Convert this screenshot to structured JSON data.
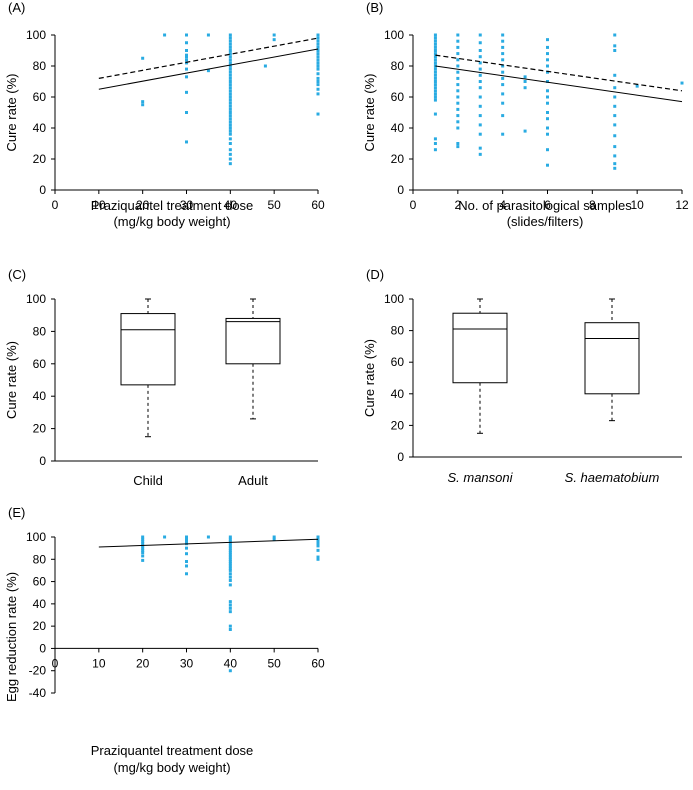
{
  "chart_data": [
    {
      "id": "A",
      "panel_label": "(A)",
      "type": "scatter",
      "xlabel": [
        "Praziquantel treatment dose",
        "(mg/kg body weight)"
      ],
      "ylabel": "Cure rate (%)",
      "xlim": [
        0,
        60
      ],
      "ylim": [
        0,
        100
      ],
      "xticks": [
        0,
        10,
        20,
        30,
        40,
        50,
        60
      ],
      "yticks": [
        0,
        20,
        40,
        60,
        80,
        100
      ],
      "points": [
        [
          20,
          57
        ],
        [
          20,
          55
        ],
        [
          20,
          85
        ],
        [
          25,
          100
        ],
        [
          30,
          31
        ],
        [
          30,
          50
        ],
        [
          30,
          63
        ],
        [
          30,
          73
        ],
        [
          30,
          78
        ],
        [
          30,
          82
        ],
        [
          30,
          84
        ],
        [
          30,
          86
        ],
        [
          30,
          87
        ],
        [
          30,
          90
        ],
        [
          30,
          95
        ],
        [
          30,
          100
        ],
        [
          35,
          77
        ],
        [
          35,
          100
        ],
        [
          40,
          17
        ],
        [
          40,
          20
        ],
        [
          40,
          23
        ],
        [
          40,
          26
        ],
        [
          40,
          30
        ],
        [
          40,
          33
        ],
        [
          40,
          36
        ],
        [
          40,
          38
        ],
        [
          40,
          40
        ],
        [
          40,
          42
        ],
        [
          40,
          44
        ],
        [
          40,
          46
        ],
        [
          40,
          48
        ],
        [
          40,
          50
        ],
        [
          40,
          52
        ],
        [
          40,
          54
        ],
        [
          40,
          56
        ],
        [
          40,
          58
        ],
        [
          40,
          60
        ],
        [
          40,
          62
        ],
        [
          40,
          64
        ],
        [
          40,
          66
        ],
        [
          40,
          68
        ],
        [
          40,
          70
        ],
        [
          40,
          72
        ],
        [
          40,
          74
        ],
        [
          40,
          76
        ],
        [
          40,
          78
        ],
        [
          40,
          80
        ],
        [
          40,
          82
        ],
        [
          40,
          84
        ],
        [
          40,
          86
        ],
        [
          40,
          88
        ],
        [
          40,
          90
        ],
        [
          40,
          92
        ],
        [
          40,
          94
        ],
        [
          40,
          96
        ],
        [
          40,
          98
        ],
        [
          40,
          100
        ],
        [
          48,
          80
        ],
        [
          50,
          97
        ],
        [
          50,
          100
        ],
        [
          60,
          49
        ],
        [
          60,
          62
        ],
        [
          60,
          65
        ],
        [
          60,
          68
        ],
        [
          60,
          70
        ],
        [
          60,
          72
        ],
        [
          60,
          75
        ],
        [
          60,
          78
        ],
        [
          60,
          80
        ],
        [
          60,
          82
        ],
        [
          60,
          84
        ],
        [
          60,
          86
        ],
        [
          60,
          88
        ],
        [
          60,
          90
        ],
        [
          60,
          92
        ],
        [
          60,
          94
        ],
        [
          60,
          96
        ],
        [
          60,
          98
        ],
        [
          60,
          100
        ]
      ],
      "fit_lines": [
        {
          "style": "solid",
          "x": [
            10,
            60
          ],
          "y": [
            65,
            91
          ]
        },
        {
          "style": "dashed",
          "x": [
            10,
            60
          ],
          "y": [
            72,
            98
          ]
        }
      ]
    },
    {
      "id": "B",
      "panel_label": "(B)",
      "type": "scatter",
      "xlabel": [
        "No. of parasitological samples",
        "(slides/filters)"
      ],
      "ylabel": "Cure rate (%)",
      "xlim": [
        0,
        12
      ],
      "ylim": [
        0,
        100
      ],
      "xticks": [
        0,
        2,
        4,
        6,
        8,
        10,
        12
      ],
      "yticks": [
        0,
        20,
        40,
        60,
        80,
        100
      ],
      "points": [
        [
          1,
          26
        ],
        [
          1,
          30
        ],
        [
          1,
          33
        ],
        [
          1,
          49
        ],
        [
          1,
          58
        ],
        [
          1,
          60
        ],
        [
          1,
          62
        ],
        [
          1,
          64
        ],
        [
          1,
          66
        ],
        [
          1,
          68
        ],
        [
          1,
          70
        ],
        [
          1,
          72
        ],
        [
          1,
          74
        ],
        [
          1,
          76
        ],
        [
          1,
          78
        ],
        [
          1,
          80
        ],
        [
          1,
          82
        ],
        [
          1,
          84
        ],
        [
          1,
          86
        ],
        [
          1,
          88
        ],
        [
          1,
          90
        ],
        [
          1,
          92
        ],
        [
          1,
          94
        ],
        [
          1,
          96
        ],
        [
          1,
          98
        ],
        [
          1,
          100
        ],
        [
          2,
          28
        ],
        [
          2,
          30
        ],
        [
          2,
          40
        ],
        [
          2,
          44
        ],
        [
          2,
          48
        ],
        [
          2,
          52
        ],
        [
          2,
          56
        ],
        [
          2,
          60
        ],
        [
          2,
          64
        ],
        [
          2,
          68
        ],
        [
          2,
          72
        ],
        [
          2,
          76
        ],
        [
          2,
          80
        ],
        [
          2,
          84
        ],
        [
          2,
          88
        ],
        [
          2,
          92
        ],
        [
          2,
          96
        ],
        [
          2,
          100
        ],
        [
          3,
          23
        ],
        [
          3,
          27
        ],
        [
          3,
          36
        ],
        [
          3,
          42
        ],
        [
          3,
          48
        ],
        [
          3,
          54
        ],
        [
          3,
          60
        ],
        [
          3,
          66
        ],
        [
          3,
          70
        ],
        [
          3,
          74
        ],
        [
          3,
          78
        ],
        [
          3,
          82
        ],
        [
          3,
          86
        ],
        [
          3,
          90
        ],
        [
          3,
          95
        ],
        [
          3,
          100
        ],
        [
          4,
          36
        ],
        [
          4,
          48
        ],
        [
          4,
          56
        ],
        [
          4,
          62
        ],
        [
          4,
          68
        ],
        [
          4,
          72
        ],
        [
          4,
          76
        ],
        [
          4,
          80
        ],
        [
          4,
          84
        ],
        [
          4,
          88
        ],
        [
          4,
          92
        ],
        [
          4,
          96
        ],
        [
          4,
          100
        ],
        [
          5,
          38
        ],
        [
          5,
          66
        ],
        [
          5,
          70
        ],
        [
          5,
          73
        ],
        [
          6,
          16
        ],
        [
          6,
          26
        ],
        [
          6,
          36
        ],
        [
          6,
          40
        ],
        [
          6,
          46
        ],
        [
          6,
          50
        ],
        [
          6,
          56
        ],
        [
          6,
          60
        ],
        [
          6,
          64
        ],
        [
          6,
          70
        ],
        [
          6,
          76
        ],
        [
          6,
          80
        ],
        [
          6,
          84
        ],
        [
          6,
          88
        ],
        [
          6,
          92
        ],
        [
          6,
          97
        ],
        [
          9,
          14
        ],
        [
          9,
          17
        ],
        [
          9,
          22
        ],
        [
          9,
          28
        ],
        [
          9,
          35
        ],
        [
          9,
          42
        ],
        [
          9,
          48
        ],
        [
          9,
          54
        ],
        [
          9,
          60
        ],
        [
          9,
          66
        ],
        [
          9,
          74
        ],
        [
          9,
          90
        ],
        [
          9,
          93
        ],
        [
          9,
          100
        ],
        [
          10,
          67
        ],
        [
          12,
          69
        ]
      ],
      "fit_lines": [
        {
          "style": "solid",
          "x": [
            1,
            12
          ],
          "y": [
            80,
            57
          ]
        },
        {
          "style": "dashed",
          "x": [
            1,
            12
          ],
          "y": [
            87,
            64
          ]
        }
      ]
    },
    {
      "id": "C",
      "panel_label": "(C)",
      "type": "box",
      "ylabel": "Cure rate (%)",
      "ylim": [
        0,
        100
      ],
      "yticks": [
        0,
        20,
        40,
        60,
        80,
        100
      ],
      "italic_categories": false,
      "boxes": [
        {
          "category": "Child",
          "min": 15,
          "q1": 47,
          "median": 81,
          "q3": 91,
          "max": 100
        },
        {
          "category": "Adult",
          "min": 26,
          "q1": 60,
          "median": 86,
          "q3": 88,
          "max": 100
        }
      ]
    },
    {
      "id": "D",
      "panel_label": "(D)",
      "type": "box",
      "ylabel": "Cure rate (%)",
      "ylim": [
        0,
        100
      ],
      "yticks": [
        0,
        20,
        40,
        60,
        80,
        100
      ],
      "italic_categories": true,
      "boxes": [
        {
          "category": "S. mansoni",
          "min": 15,
          "q1": 47,
          "median": 81,
          "q3": 91,
          "max": 100
        },
        {
          "category": "S. haematobium",
          "min": 23,
          "q1": 40,
          "median": 75,
          "q3": 85,
          "max": 100
        }
      ]
    },
    {
      "id": "E",
      "panel_label": "(E)",
      "type": "scatter",
      "xlabel": [
        "Praziquantel treatment dose",
        "(mg/kg body weight)"
      ],
      "ylabel": "Egg reduction rate (%)",
      "xlim": [
        0,
        60
      ],
      "ylim": [
        -40,
        100
      ],
      "xticks": [
        0,
        10,
        20,
        30,
        40,
        50,
        60
      ],
      "yticks": [
        -40,
        -20,
        0,
        20,
        40,
        60,
        80,
        100
      ],
      "points": [
        [
          20,
          79
        ],
        [
          20,
          83
        ],
        [
          20,
          86
        ],
        [
          20,
          88
        ],
        [
          20,
          90
        ],
        [
          20,
          92
        ],
        [
          20,
          94
        ],
        [
          20,
          96
        ],
        [
          20,
          98
        ],
        [
          20,
          100
        ],
        [
          25,
          100
        ],
        [
          30,
          67
        ],
        [
          30,
          74
        ],
        [
          30,
          78
        ],
        [
          30,
          85
        ],
        [
          30,
          90
        ],
        [
          30,
          94
        ],
        [
          30,
          96
        ],
        [
          30,
          98
        ],
        [
          30,
          100
        ],
        [
          35,
          100
        ],
        [
          40,
          -20
        ],
        [
          40,
          17
        ],
        [
          40,
          20
        ],
        [
          40,
          33
        ],
        [
          40,
          36
        ],
        [
          40,
          39
        ],
        [
          40,
          42
        ],
        [
          40,
          57
        ],
        [
          40,
          61
        ],
        [
          40,
          64
        ],
        [
          40,
          67
        ],
        [
          40,
          70
        ],
        [
          40,
          72
        ],
        [
          40,
          74
        ],
        [
          40,
          76
        ],
        [
          40,
          78
        ],
        [
          40,
          80
        ],
        [
          40,
          82
        ],
        [
          40,
          84
        ],
        [
          40,
          86
        ],
        [
          40,
          88
        ],
        [
          40,
          90
        ],
        [
          40,
          92
        ],
        [
          40,
          94
        ],
        [
          40,
          96
        ],
        [
          40,
          98
        ],
        [
          40,
          100
        ],
        [
          50,
          98
        ],
        [
          50,
          100
        ],
        [
          60,
          80
        ],
        [
          60,
          82
        ],
        [
          60,
          88
        ],
        [
          60,
          92
        ],
        [
          60,
          94
        ],
        [
          60,
          96
        ],
        [
          60,
          98
        ],
        [
          60,
          100
        ]
      ],
      "fit_lines": [
        {
          "style": "solid",
          "x": [
            10,
            60
          ],
          "y": [
            91,
            98
          ]
        }
      ]
    }
  ]
}
